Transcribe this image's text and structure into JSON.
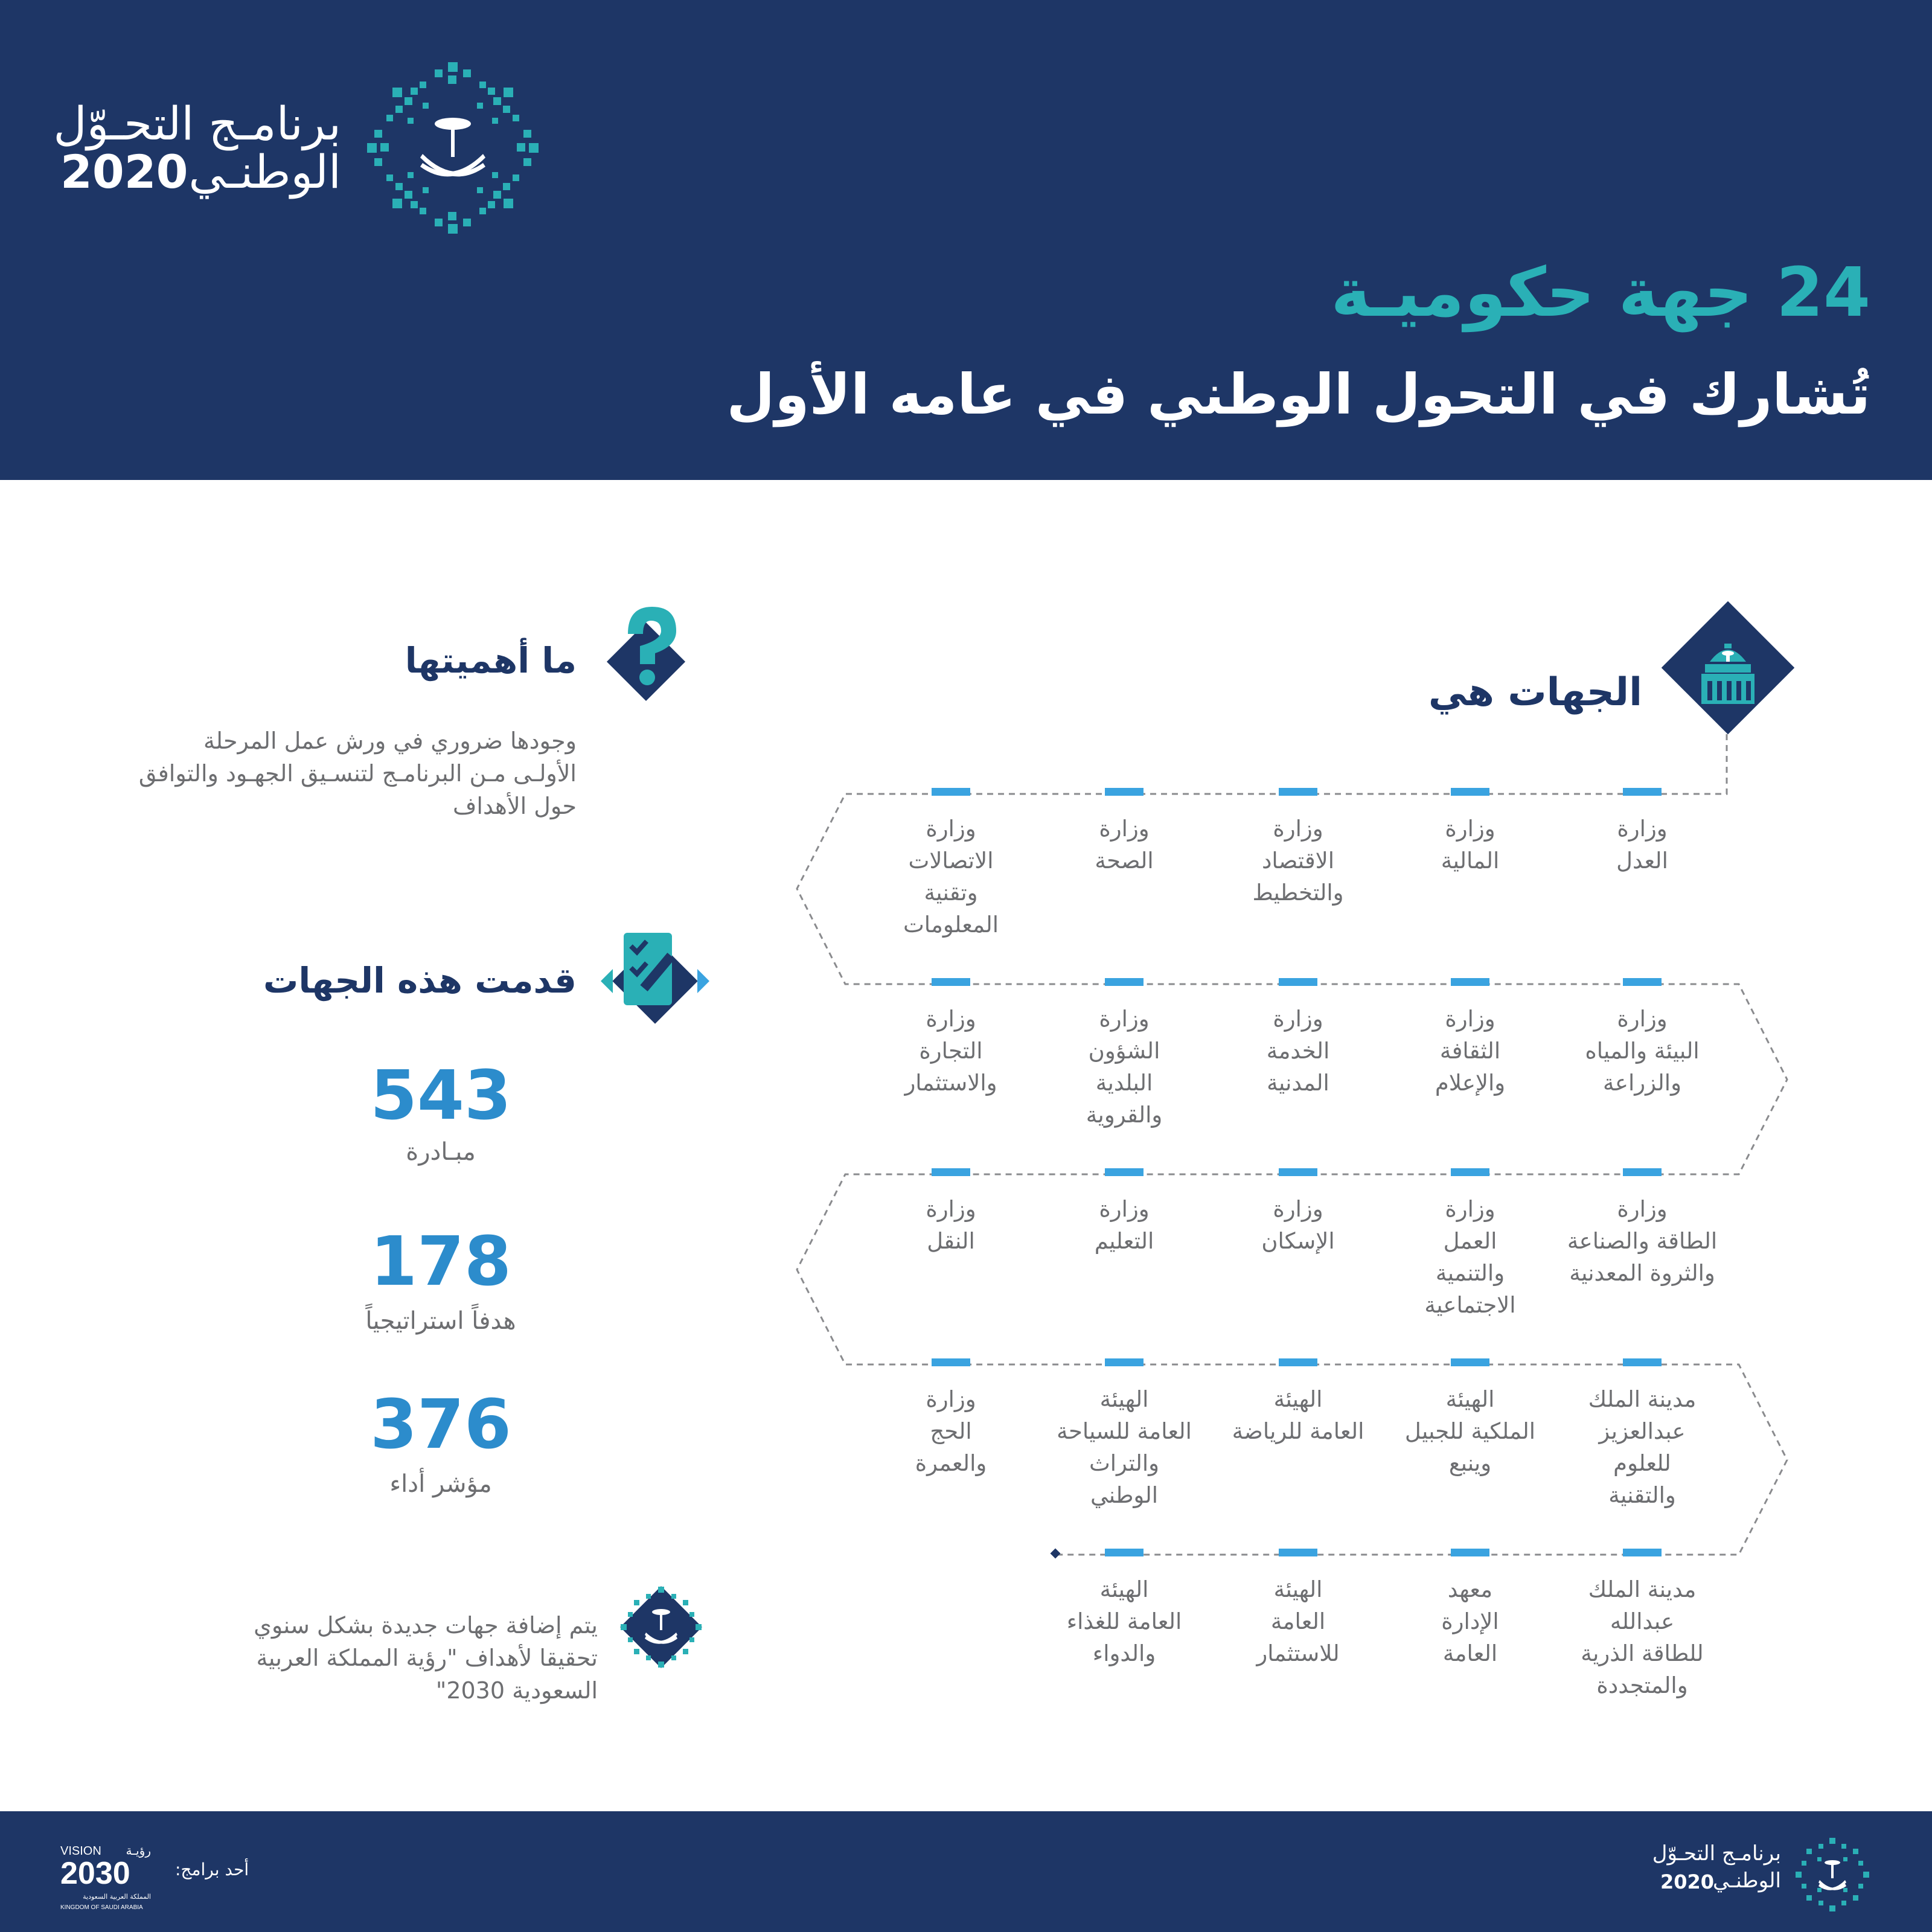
{
  "header": {
    "program_logo": {
      "line1": "برنامـج التحـوّل",
      "line2": "الوطنـي",
      "year": "2020"
    },
    "headline_count": "24 جهة حكوميـة",
    "headline_sub": "تُشارك في التحول الوطني في عامه الأول"
  },
  "entities_section": {
    "title": "الجهات هي",
    "rows": [
      [
        "وزارة\nالعدل",
        "وزارة\nالمالية",
        "وزارة\nالاقتصاد\nوالتخطيط",
        "وزارة\nالصحة",
        "وزارة\nالاتصالات\nوتقنية\nالمعلومات"
      ],
      [
        "وزارة\nالبيئة والمياه\nوالزراعة",
        "وزارة\nالثقافة\nوالإعلام",
        "وزارة\nالخدمة\nالمدنية",
        "وزارة\nالشؤون\nالبلدية\nوالقروية",
        "وزارة\nالتجارة\nوالاستثمار"
      ],
      [
        "وزارة\nالطاقة والصناعة\nوالثروة المعدنية",
        "وزارة\nالعمل\nوالتنمية\nالاجتماعية",
        "وزارة\nالإسكان",
        "وزارة\nالتعليم",
        "وزارة\nالنقل"
      ],
      [
        "مدينة الملك\nعبدالعزيز\nللعلوم\nوالتقنية",
        "الهيئة\nالملكية للجبيل\nوينبع",
        "الهيئة\nالعامة للرياضة",
        "الهيئة\nالعامة للسياحة\nوالتراث\nالوطني",
        "وزارة\nالحج\nوالعمرة"
      ],
      [
        "مدينة الملك\nعبدالله\nللطاقة الذرية\nوالمتجددة",
        "معهد\nالإدارة\nالعامة",
        "الهيئة\nالعامة\nللاستثمار",
        "الهيئة\nالعامة للغذاء\nوالدواء"
      ]
    ]
  },
  "importance": {
    "title": "ما أهميتها",
    "text": "وجودها ضروري في ورش عمل المرحلة الأولـى مـن البرنامـج لتنسـيق الجهـود والتوافق حول الأهداف"
  },
  "contributions": {
    "title": "قدمت هذه الجهات",
    "stats": [
      {
        "value": "543",
        "label": "مبـادرة"
      },
      {
        "value": "178",
        "label": "هدفاً استراتيجياً"
      },
      {
        "value": "376",
        "label": "مؤشر أداء"
      }
    ]
  },
  "note": "يتم إضافة جهات جديدة بشكل سنوي تحقيقا لأهداف \"رؤية المملكة العربية السعودية 2030\"",
  "footer": {
    "one_of_programs": "أحد برامج:",
    "vision_en": "VISION",
    "vision_ar": "رؤيـة",
    "vision_year": "2030",
    "kingdom_ar": "المملكة العربية السعودية",
    "kingdom_en": "KINGDOM OF SAUDI ARABIA",
    "program_line1": "برنامـج التحـوّل",
    "program_line2": "الوطنـي",
    "program_year": "2020"
  },
  "colors": {
    "navy": "#1e3666",
    "teal": "#2ab0b6",
    "blue": "#2c8ccc",
    "bar": "#3aa3e0",
    "grey": "#6d6e71"
  }
}
